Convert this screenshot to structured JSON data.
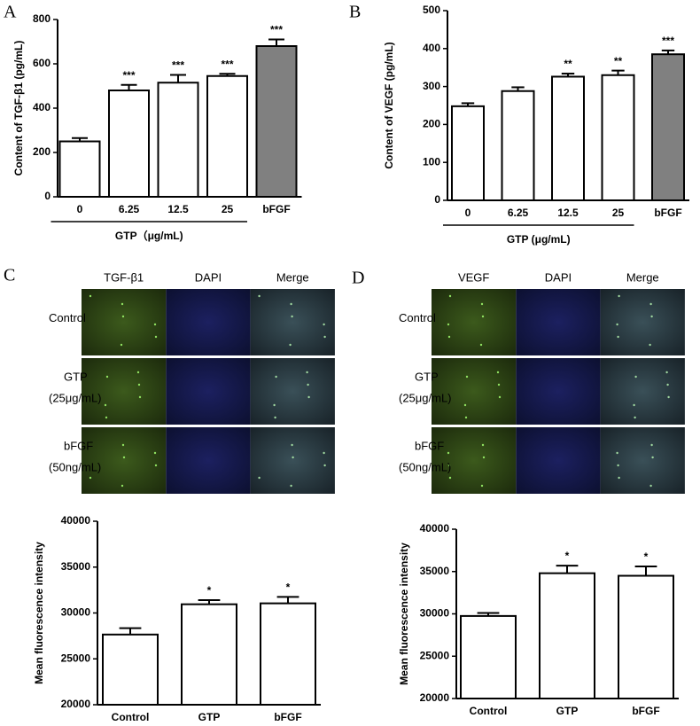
{
  "panel_letters": [
    "A",
    "B",
    "C",
    "D"
  ],
  "images": [
    {
      "headers": [
        "TGF-β1",
        "DAPI",
        "Merge"
      ],
      "rows": [
        [
          "Control"
        ],
        [
          "GTP",
          "(25μg/mL)"
        ],
        [
          "bFGF",
          "(50ng/mL)"
        ]
      ]
    },
    {
      "headers": [
        "VEGF",
        "DAPI",
        "Merge"
      ],
      "rows": [
        [
          "Control"
        ],
        [
          "GTP",
          "(25μg/mL)"
        ],
        [
          "bFGF",
          "(50ng/mL)"
        ]
      ]
    }
  ],
  "chart_data": [
    {
      "type": "bar",
      "ylabel": "Content of TGF-β1 (pg/mL)",
      "xlabel": "GTP（μg/mL)",
      "categories": [
        "0",
        "6.25",
        "12.5",
        "25",
        "bFGF"
      ],
      "values": [
        250,
        480,
        515,
        545,
        680
      ],
      "errors": [
        15,
        25,
        35,
        10,
        30
      ],
      "significance": [
        null,
        "***",
        "***",
        "***",
        "***"
      ],
      "colors": [
        "#ffffff",
        "#ffffff",
        "#ffffff",
        "#ffffff",
        "#808080"
      ],
      "ylim": [
        0,
        800
      ],
      "yticks": [
        0,
        200,
        400,
        600,
        800
      ]
    },
    {
      "type": "bar",
      "ylabel": "Content of VEGF (pg/mL)",
      "xlabel": "GTP (μg/mL)",
      "categories": [
        "0",
        "6.25",
        "12.5",
        "25",
        "bFGF"
      ],
      "values": [
        248,
        288,
        326,
        330,
        385
      ],
      "errors": [
        8,
        10,
        8,
        12,
        10
      ],
      "significance": [
        null,
        null,
        "**",
        "**",
        "***"
      ],
      "colors": [
        "#ffffff",
        "#ffffff",
        "#ffffff",
        "#ffffff",
        "#808080"
      ],
      "ylim": [
        0,
        500
      ],
      "yticks": [
        0,
        100,
        200,
        300,
        400,
        500
      ]
    },
    {
      "type": "bar",
      "ylabel": "Mean fluorescence intensity",
      "categories": [
        "Control",
        "GTP",
        "bFGF"
      ],
      "values": [
        27650,
        30950,
        31050
      ],
      "errors": [
        700,
        450,
        700
      ],
      "significance": [
        null,
        "*",
        "*"
      ],
      "colors": [
        "#ffffff",
        "#ffffff",
        "#ffffff"
      ],
      "ylim": [
        20000,
        40000
      ],
      "yticks": [
        20000,
        25000,
        30000,
        35000,
        40000
      ]
    },
    {
      "type": "bar",
      "ylabel": "Mean fluorescence intensity",
      "categories": [
        "Control",
        "GTP",
        "bFGF"
      ],
      "values": [
        29750,
        34800,
        34500
      ],
      "errors": [
        350,
        900,
        1100
      ],
      "significance": [
        null,
        "*",
        "*"
      ],
      "colors": [
        "#ffffff",
        "#ffffff",
        "#ffffff"
      ],
      "ylim": [
        20000,
        40000
      ],
      "yticks": [
        20000,
        25000,
        30000,
        35000,
        40000
      ]
    }
  ]
}
